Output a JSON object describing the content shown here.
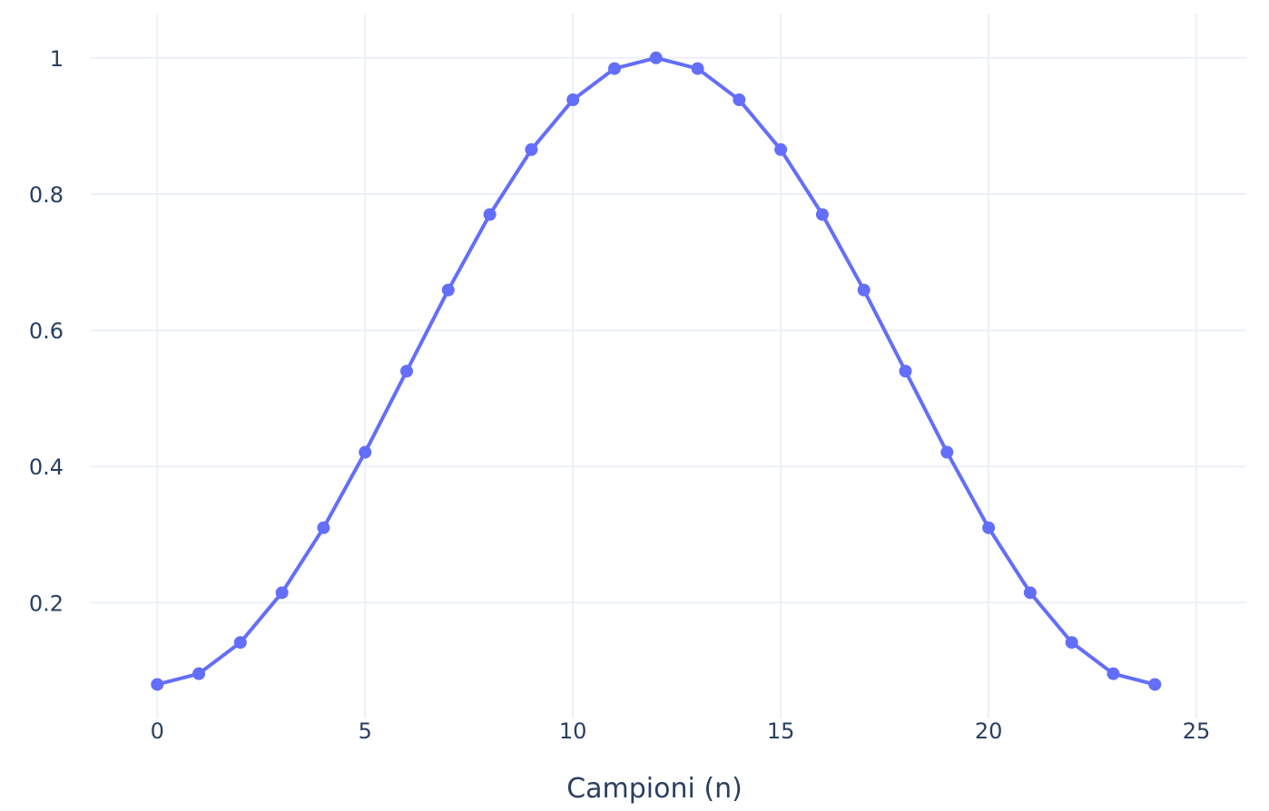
{
  "chart_data": {
    "type": "line",
    "title": "",
    "xlabel": "Campioni (n)",
    "ylabel": "",
    "xlim": [
      -1.6,
      26.2
    ],
    "ylim": [
      0.03,
      1.065
    ],
    "grid": true,
    "x_ticks": [
      0,
      5,
      10,
      15,
      20,
      25
    ],
    "x_tick_labels": [
      "0",
      "5",
      "10",
      "15",
      "20",
      "25"
    ],
    "y_ticks": [
      0.2,
      0.4,
      0.6,
      0.8,
      1
    ],
    "y_tick_labels": [
      "0.2",
      "0.4",
      "0.6",
      "0.8",
      "1"
    ],
    "colors": {
      "series": "#636efa",
      "grid": "#ebf0f8",
      "text": "#2a3f5f",
      "background": "#ffffff"
    },
    "series": [
      {
        "mode": "lines+markers",
        "x": [
          0,
          1,
          2,
          3,
          4,
          5,
          6,
          7,
          8,
          9,
          10,
          11,
          12,
          13,
          14,
          15,
          16,
          17,
          18,
          19,
          20,
          21,
          22,
          23,
          24
        ],
        "y": [
          0.08,
          0.0957,
          0.1416,
          0.2147,
          0.31,
          0.4209,
          0.54,
          0.6591,
          0.77,
          0.8653,
          0.9384,
          0.9843,
          1.0,
          0.9843,
          0.9384,
          0.8653,
          0.77,
          0.6591,
          0.54,
          0.4209,
          0.31,
          0.2147,
          0.1416,
          0.0957,
          0.08
        ]
      }
    ]
  }
}
